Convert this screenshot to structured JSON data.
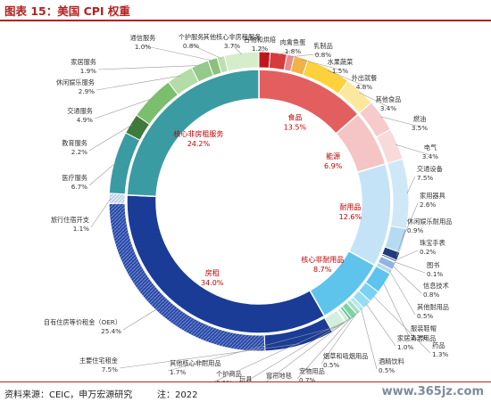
{
  "header": {
    "title": "图表 15：美国 CPI 权重"
  },
  "footer": {
    "source": "资料来源：CEIC，申万宏源研究",
    "note": "注：2022",
    "watermark": "www.365jz.com"
  },
  "chart_data": {
    "type": "pie",
    "title": "图表 15：美国 CPI 权重",
    "inner_ring": [
      {
        "label": "食品",
        "value": 13.5,
        "display": "13.5%",
        "color": "#e35f5f"
      },
      {
        "label": "能源",
        "value": 6.9,
        "display": "6.9%",
        "color": "#f5c4c4"
      },
      {
        "label": "耐用品",
        "value": 12.6,
        "display": "12.6%",
        "color": "#c5e3f6"
      },
      {
        "label": "核心非耐用品",
        "value": 8.7,
        "display": "8.7%",
        "color": "#5ec4ec"
      },
      {
        "label": "房租",
        "value": 34.0,
        "display": "34.0%",
        "color": "#1a3c96"
      },
      {
        "label": "核心非房租服务",
        "value": 24.2,
        "display": "24.2%",
        "color": "#3b9ba3"
      }
    ],
    "outer_ring": [
      {
        "label": "谷物和烘焙",
        "value": 1.2,
        "display": "1.2%",
        "color": "#c0151c"
      },
      {
        "label": "肉禽鱼蛋",
        "value": 1.8,
        "display": "1.8%",
        "color": "#d83b3b"
      },
      {
        "label": "乳制品",
        "value": 0.8,
        "display": "0.8%",
        "color": "#ec8a8a"
      },
      {
        "label": "水果蔬菜",
        "value": 1.5,
        "display": "1.5%",
        "color": "#f2b24a"
      },
      {
        "label": "外出就餐",
        "value": 4.8,
        "display": "4.8%",
        "color": "#fdd13b"
      },
      {
        "label": "其他食品",
        "value": 3.4,
        "display": "3.4%",
        "color": "#fde79c"
      },
      {
        "label": "燃油",
        "value": 3.5,
        "display": "3.5%",
        "color": "#f7cbcb"
      },
      {
        "label": "电气",
        "value": 3.4,
        "display": "3.4%",
        "color": "#f8dada"
      },
      {
        "label": "交通设备",
        "value": 7.5,
        "display": "7.5%",
        "color": "#cfe8f8"
      },
      {
        "label": "家用器具",
        "value": 2.6,
        "display": "2.6%",
        "color": "#b5dbf3"
      },
      {
        "label": "休闲娱乐耐用品",
        "value": 0.9,
        "display": "0.9%",
        "color": "#1f3d7a"
      },
      {
        "label": "珠宝手表",
        "value": 0.2,
        "display": "0.2%",
        "color": "#355c9e"
      },
      {
        "label": "图书",
        "value": 0.1,
        "display": "0.1%",
        "color": "#6a8cc6"
      },
      {
        "label": "信息技术",
        "value": 0.8,
        "display": "0.8%",
        "color": "#8fb4e0"
      },
      {
        "label": "其他耐用品",
        "value": 0.5,
        "display": "0.5%",
        "color": "#bcd7ef"
      },
      {
        "label": "服装鞋帽",
        "value": 2.3,
        "display": "2.3%",
        "color": "#5cc4ee"
      },
      {
        "label": "药品",
        "value": 1.3,
        "display": "1.3%",
        "color": "#79d2f2"
      },
      {
        "label": "家居清洁用品",
        "value": 1.0,
        "display": "1.0%",
        "color": "#98dcf4"
      },
      {
        "label": "酒精饮料",
        "value": 0.5,
        "display": "0.5%",
        "color": "#b6e7f7"
      },
      {
        "label": "烟草和吸烟用品",
        "value": 0.5,
        "display": "0.5%",
        "color": "#a8e0c0"
      },
      {
        "label": "宠物用品",
        "value": 0.7,
        "display": "0.7%",
        "color": "#7cd3a6"
      },
      {
        "label": "窗帘地毯",
        "value": 0.3,
        "display": "0.3%",
        "color": "#5fc590"
      },
      {
        "label": "玩具",
        "value": 0.4,
        "display": "0.4%",
        "color": "#c7ecd7"
      },
      {
        "label": "个护商品",
        "value": 0.1,
        "display": "0.1%",
        "color": "#e0f5e8"
      },
      {
        "label": "其他核心非耐用品",
        "value": 1.7,
        "display": "1.7%",
        "color": "#d2f0dd"
      },
      {
        "label": "主要住宅租金",
        "value": 7.5,
        "display": "7.5%",
        "color": "#1a3c96"
      },
      {
        "label": "自有住房等价租金（OER）",
        "value": 25.4,
        "display": "25.4%",
        "color": "#2a4aa8"
      },
      {
        "label": "旅行住宿开支",
        "value": 1.1,
        "display": "1.1%",
        "color": "#cfe0f3"
      },
      {
        "label": "医疗服务",
        "value": 6.7,
        "display": "6.7%",
        "color": "#3b9ba3"
      },
      {
        "label": "教育服务",
        "value": 2.2,
        "display": "2.2%",
        "color": "#3e7a3a"
      },
      {
        "label": "交通服务",
        "value": 4.9,
        "display": "4.9%",
        "color": "#7bbf6e"
      },
      {
        "label": "休闲娱乐服务",
        "value": 2.9,
        "display": "2.9%",
        "color": "#b3dca6"
      },
      {
        "label": "家居服务",
        "value": 1.9,
        "display": "1.9%",
        "color": "#94c98a"
      },
      {
        "label": "通信服务",
        "value": 1.0,
        "display": "1.0%",
        "color": "#8cc07e"
      },
      {
        "label": "个护服务",
        "value": 0.8,
        "display": "0.8%",
        "color": "#bde0b2"
      },
      {
        "label": "其他核心非房租服务",
        "value": 3.7,
        "display": "3.7%",
        "color": "#d6edcc"
      }
    ]
  }
}
